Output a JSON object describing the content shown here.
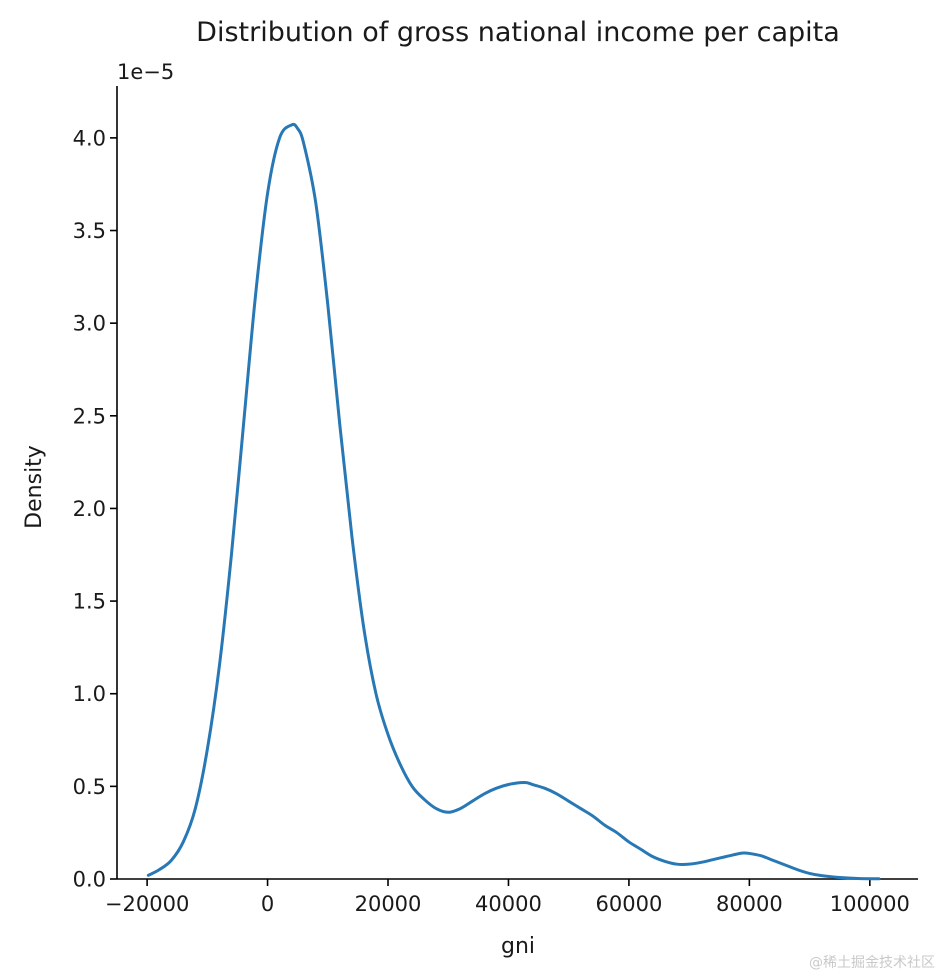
{
  "chart_data": {
    "type": "line",
    "title": "Distribution of gross national income per capita",
    "xlabel": "gni",
    "ylabel": "Density",
    "y_scale_label": "1e−5",
    "xlim": [
      -25000,
      108000
    ],
    "ylim": [
      0,
      4.28
    ],
    "x_ticks": [
      -20000,
      0,
      20000,
      40000,
      60000,
      80000,
      100000
    ],
    "x_tick_labels": [
      "−20000",
      "0",
      "20000",
      "40000",
      "60000",
      "80000",
      "100000"
    ],
    "y_ticks": [
      0.0,
      0.5,
      1.0,
      1.5,
      2.0,
      2.5,
      3.0,
      3.5,
      4.0
    ],
    "y_tick_labels": [
      "0.0",
      "0.5",
      "1.0",
      "1.5",
      "2.0",
      "2.5",
      "3.0",
      "3.5",
      "4.0"
    ],
    "grid": false,
    "series": [
      {
        "color": "#2878b5",
        "x": [
          -19800,
          -18000,
          -16000,
          -14000,
          -12000,
          -10000,
          -8000,
          -6000,
          -4000,
          -2000,
          0,
          2000,
          4000,
          5000,
          6000,
          8000,
          10000,
          12000,
          14000,
          16000,
          18000,
          20000,
          22000,
          24000,
          26000,
          28000,
          30000,
          32000,
          34000,
          36000,
          38000,
          40000,
          42000,
          43000,
          44000,
          46000,
          48000,
          50000,
          52000,
          54000,
          56000,
          58000,
          60000,
          62000,
          64000,
          66000,
          68000,
          70000,
          72000,
          74000,
          76000,
          78000,
          79000,
          80000,
          82000,
          84000,
          86000,
          88000,
          90000,
          92000,
          95000,
          98000,
          101500
        ],
        "y": [
          0.02,
          0.05,
          0.1,
          0.2,
          0.38,
          0.7,
          1.15,
          1.75,
          2.45,
          3.15,
          3.7,
          4.0,
          4.07,
          4.05,
          3.97,
          3.65,
          3.1,
          2.45,
          1.85,
          1.35,
          1.0,
          0.78,
          0.62,
          0.5,
          0.43,
          0.38,
          0.36,
          0.38,
          0.42,
          0.46,
          0.49,
          0.51,
          0.52,
          0.52,
          0.51,
          0.49,
          0.46,
          0.42,
          0.38,
          0.34,
          0.29,
          0.25,
          0.2,
          0.16,
          0.12,
          0.095,
          0.08,
          0.08,
          0.09,
          0.105,
          0.12,
          0.135,
          0.14,
          0.138,
          0.125,
          0.1,
          0.075,
          0.05,
          0.03,
          0.018,
          0.008,
          0.003,
          0.001
        ]
      }
    ]
  },
  "watermark": "@稀土掘金技术社区"
}
